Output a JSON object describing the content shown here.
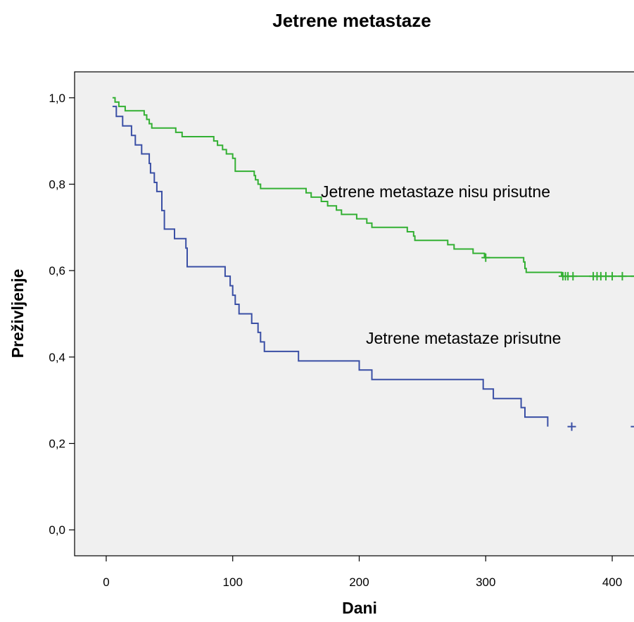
{
  "chart_data": {
    "type": "line",
    "title": "Jetrene metastaze",
    "xlabel": "Dani",
    "ylabel": "Preživljenje",
    "xlim": [
      -25,
      420
    ],
    "ylim": [
      -0.06,
      1.06
    ],
    "xticks": [
      0,
      100,
      200,
      300,
      400
    ],
    "xtick_labels": [
      "0",
      "100",
      "200",
      "300",
      "400"
    ],
    "yticks": [
      0.0,
      0.2,
      0.4,
      0.6,
      0.8,
      1.0
    ],
    "ytick_labels": [
      "0,0",
      "0,2",
      "0,4",
      "0,6",
      "0,8",
      "1,0"
    ],
    "grid": false,
    "series": [
      {
        "name": "Jetrene metastaze nisu prisutne",
        "color": "#33b033",
        "step": [
          [
            5,
            1.0
          ],
          [
            7,
            0.99
          ],
          [
            10,
            0.98
          ],
          [
            15,
            0.97
          ],
          [
            30,
            0.96
          ],
          [
            32,
            0.95
          ],
          [
            34,
            0.94
          ],
          [
            36,
            0.93
          ],
          [
            55,
            0.92
          ],
          [
            60,
            0.91
          ],
          [
            85,
            0.9
          ],
          [
            88,
            0.89
          ],
          [
            92,
            0.88
          ],
          [
            95,
            0.87
          ],
          [
            100,
            0.86
          ],
          [
            102,
            0.83
          ],
          [
            117,
            0.82
          ],
          [
            118,
            0.81
          ],
          [
            120,
            0.8
          ],
          [
            122,
            0.79
          ],
          [
            158,
            0.78
          ],
          [
            162,
            0.77
          ],
          [
            170,
            0.76
          ],
          [
            175,
            0.75
          ],
          [
            182,
            0.74
          ],
          [
            186,
            0.73
          ],
          [
            198,
            0.72
          ],
          [
            206,
            0.71
          ],
          [
            210,
            0.7
          ],
          [
            238,
            0.69
          ],
          [
            243,
            0.68
          ],
          [
            244,
            0.67
          ],
          [
            270,
            0.66
          ],
          [
            275,
            0.65
          ],
          [
            290,
            0.64
          ],
          [
            299,
            0.63
          ],
          [
            330,
            0.62
          ],
          [
            331,
            0.605
          ],
          [
            332,
            0.596
          ],
          [
            360,
            0.587
          ],
          [
            420,
            0.587
          ]
        ],
        "censored": [
          [
            300,
            0.63
          ],
          [
            361,
            0.587
          ],
          [
            363,
            0.587
          ],
          [
            365,
            0.587
          ],
          [
            369,
            0.587
          ],
          [
            385,
            0.587
          ],
          [
            388,
            0.587
          ],
          [
            391,
            0.587
          ],
          [
            395,
            0.587
          ],
          [
            400,
            0.587
          ],
          [
            408,
            0.587
          ],
          [
            418,
            0.587
          ]
        ]
      },
      {
        "name": "Jetrene metastaze prisutne",
        "color": "#3a4fa5",
        "step": [
          [
            5,
            0.98
          ],
          [
            8,
            0.957
          ],
          [
            13,
            0.935
          ],
          [
            20,
            0.913
          ],
          [
            23,
            0.891
          ],
          [
            28,
            0.87
          ],
          [
            34,
            0.848
          ],
          [
            35,
            0.826
          ],
          [
            38,
            0.804
          ],
          [
            40,
            0.783
          ],
          [
            44,
            0.739
          ],
          [
            46,
            0.696
          ],
          [
            54,
            0.674
          ],
          [
            63,
            0.652
          ],
          [
            64,
            0.609
          ],
          [
            94,
            0.587
          ],
          [
            98,
            0.565
          ],
          [
            100,
            0.543
          ],
          [
            102,
            0.522
          ],
          [
            105,
            0.5
          ],
          [
            115,
            0.478
          ],
          [
            120,
            0.457
          ],
          [
            122,
            0.435
          ],
          [
            125,
            0.413
          ],
          [
            152,
            0.391
          ],
          [
            200,
            0.37
          ],
          [
            210,
            0.348
          ],
          [
            298,
            0.326
          ],
          [
            306,
            0.304
          ],
          [
            328,
            0.283
          ],
          [
            331,
            0.261
          ],
          [
            349,
            0.239
          ]
        ],
        "censored": [
          [
            368,
            0.239
          ],
          [
            418,
            0.239
          ]
        ]
      }
    ],
    "annotations": [
      {
        "text": "Jetrene metastaze nisu prisutne",
        "series": 0
      },
      {
        "text": "Jetrene metastaze prisutne",
        "series": 1
      }
    ],
    "plot_background": "#f0f0f0"
  }
}
